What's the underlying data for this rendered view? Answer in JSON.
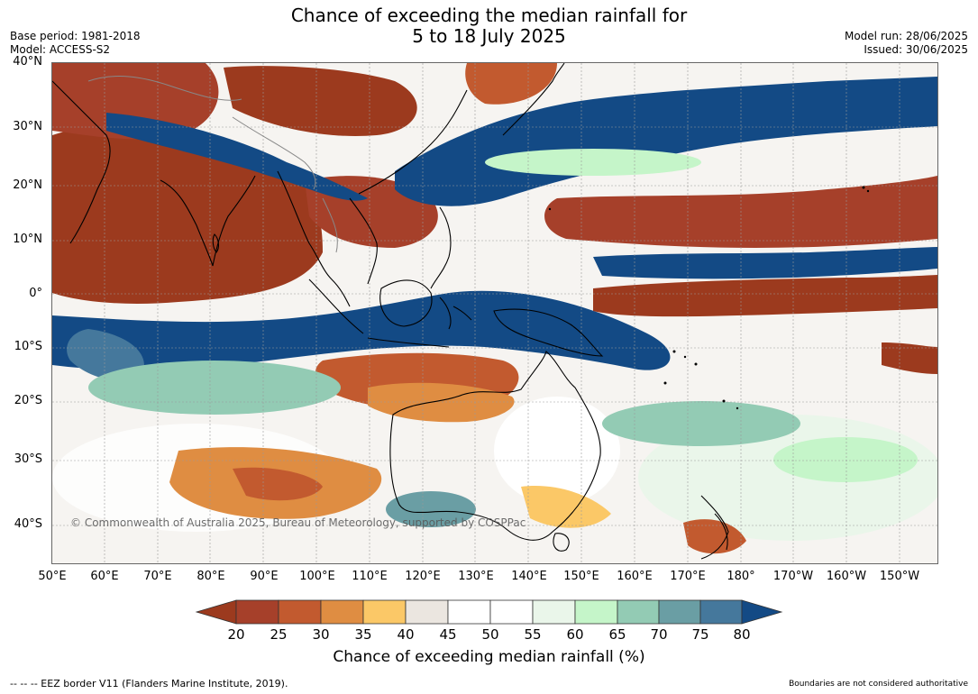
{
  "title": {
    "line1": "Chance of exceeding the median rainfall for",
    "line2": "5 to 18 July 2025"
  },
  "meta_left": {
    "base_period": "Base period: 1981-2018",
    "model": "Model: ACCESS-S2"
  },
  "meta_right": {
    "model_run": "Model run: 28/06/2025",
    "issued": "Issued: 30/06/2025"
  },
  "map": {
    "lat_labels": [
      "40°N",
      "30°N",
      "20°N",
      "10°N",
      "0°",
      "10°S",
      "20°S",
      "30°S",
      "40°S"
    ],
    "lon_labels": [
      "50°E",
      "60°E",
      "70°E",
      "80°E",
      "90°E",
      "100°E",
      "110°E",
      "120°E",
      "130°E",
      "140°E",
      "150°E",
      "160°E",
      "170°E",
      "180°",
      "170°W",
      "160°W",
      "150°W"
    ],
    "copyright": "© Commonwealth of Australia 2025, Bureau of Meteorology, supported by COSPPac",
    "colors": {
      "below_20": "#9c3a1e",
      "c20_25": "#a6402a",
      "c25_30": "#c25a2f",
      "c30_35": "#df8d42",
      "c35_40": "#fbc867",
      "c40_45": "#ebe6e0",
      "c45_55": "#ffffff",
      "c55_60": "#eaf6ea",
      "c60_65": "#c5f5c9",
      "c65_70": "#93cbb4",
      "c70_75": "#6a9ea4",
      "c75_80": "#45789c",
      "above_80": "#134a85"
    }
  },
  "colorbar": {
    "ticks": [
      "20",
      "25",
      "30",
      "35",
      "40",
      "45",
      "50",
      "55",
      "60",
      "65",
      "70",
      "75",
      "80"
    ],
    "label": "Chance of exceeding median rainfall (%)"
  },
  "footer": {
    "left": "--  --  -- EEZ border V11 (Flanders Marine Institute, 2019).",
    "right": "Boundaries are not considered authoritative"
  }
}
